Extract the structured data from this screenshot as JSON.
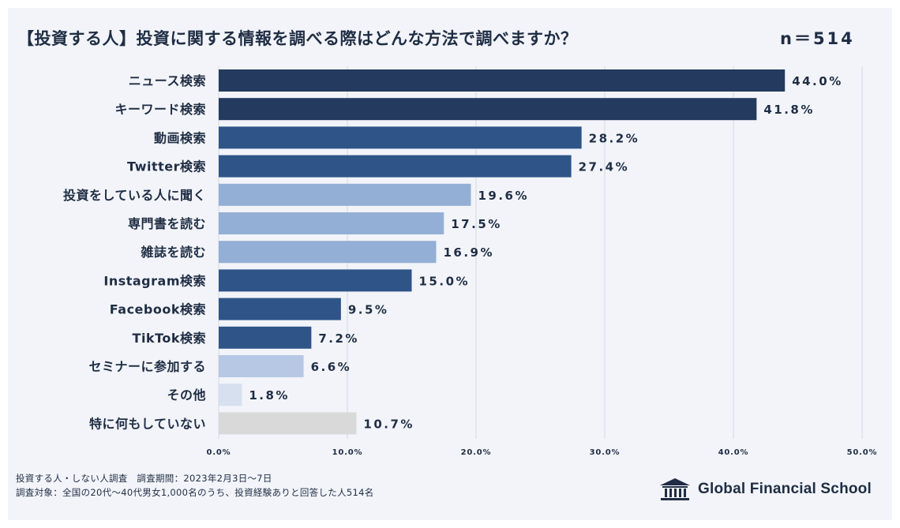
{
  "header": {
    "title": "【投資する人】投資に関する情報を調べる際はどんな方法で調べますか？",
    "sample_size": "n＝514"
  },
  "chart_data": {
    "type": "bar",
    "orientation": "horizontal",
    "categories": [
      "ニュース検索",
      "キーワード検索",
      "動画検索",
      "Twitter検索",
      "投資をしている人に聞く",
      "専門書を読む",
      "雑誌を読む",
      "Instagram検索",
      "Facebook検索",
      "TikTok検索",
      "セミナーに参加する",
      "その他",
      "特に何もしていない"
    ],
    "values": [
      44.0,
      41.8,
      28.2,
      27.4,
      19.6,
      17.5,
      16.9,
      15.0,
      9.5,
      7.2,
      6.6,
      1.8,
      10.7
    ],
    "value_labels": [
      "44.0%",
      "41.8%",
      "28.2%",
      "27.4%",
      "19.6%",
      "17.5%",
      "16.9%",
      "15.0%",
      "9.5%",
      "7.2%",
      "6.6%",
      "1.8%",
      "10.7%"
    ],
    "bar_colors": [
      "#243a5e",
      "#243a5e",
      "#2f5588",
      "#2f5588",
      "#93afd5",
      "#93afd5",
      "#93afd5",
      "#2f5588",
      "#2f5588",
      "#2f5588",
      "#b6c8e4",
      "#d6e0ef",
      "#d9d9d9"
    ],
    "xlim": [
      0,
      50
    ],
    "ticks": [
      0,
      10,
      20,
      30,
      40,
      50
    ],
    "tick_labels": [
      "0.0%",
      "10.0%",
      "20.0%",
      "30.0%",
      "40.0%",
      "50.0%"
    ],
    "grid": true,
    "title": "【投資する人】投資に関する情報を調べる際はどんな方法で調べますか？",
    "xlabel": "",
    "ylabel": ""
  },
  "footer": {
    "line1": "投資する人・しない人調査　調査期間：2023年2月3日〜7日",
    "line2": "調査対象：全国の20代〜40代男女1,000名のうち、投資経験ありと回答した人514名"
  },
  "logo": {
    "text": "Global Financial School",
    "icon": "building-icon"
  }
}
